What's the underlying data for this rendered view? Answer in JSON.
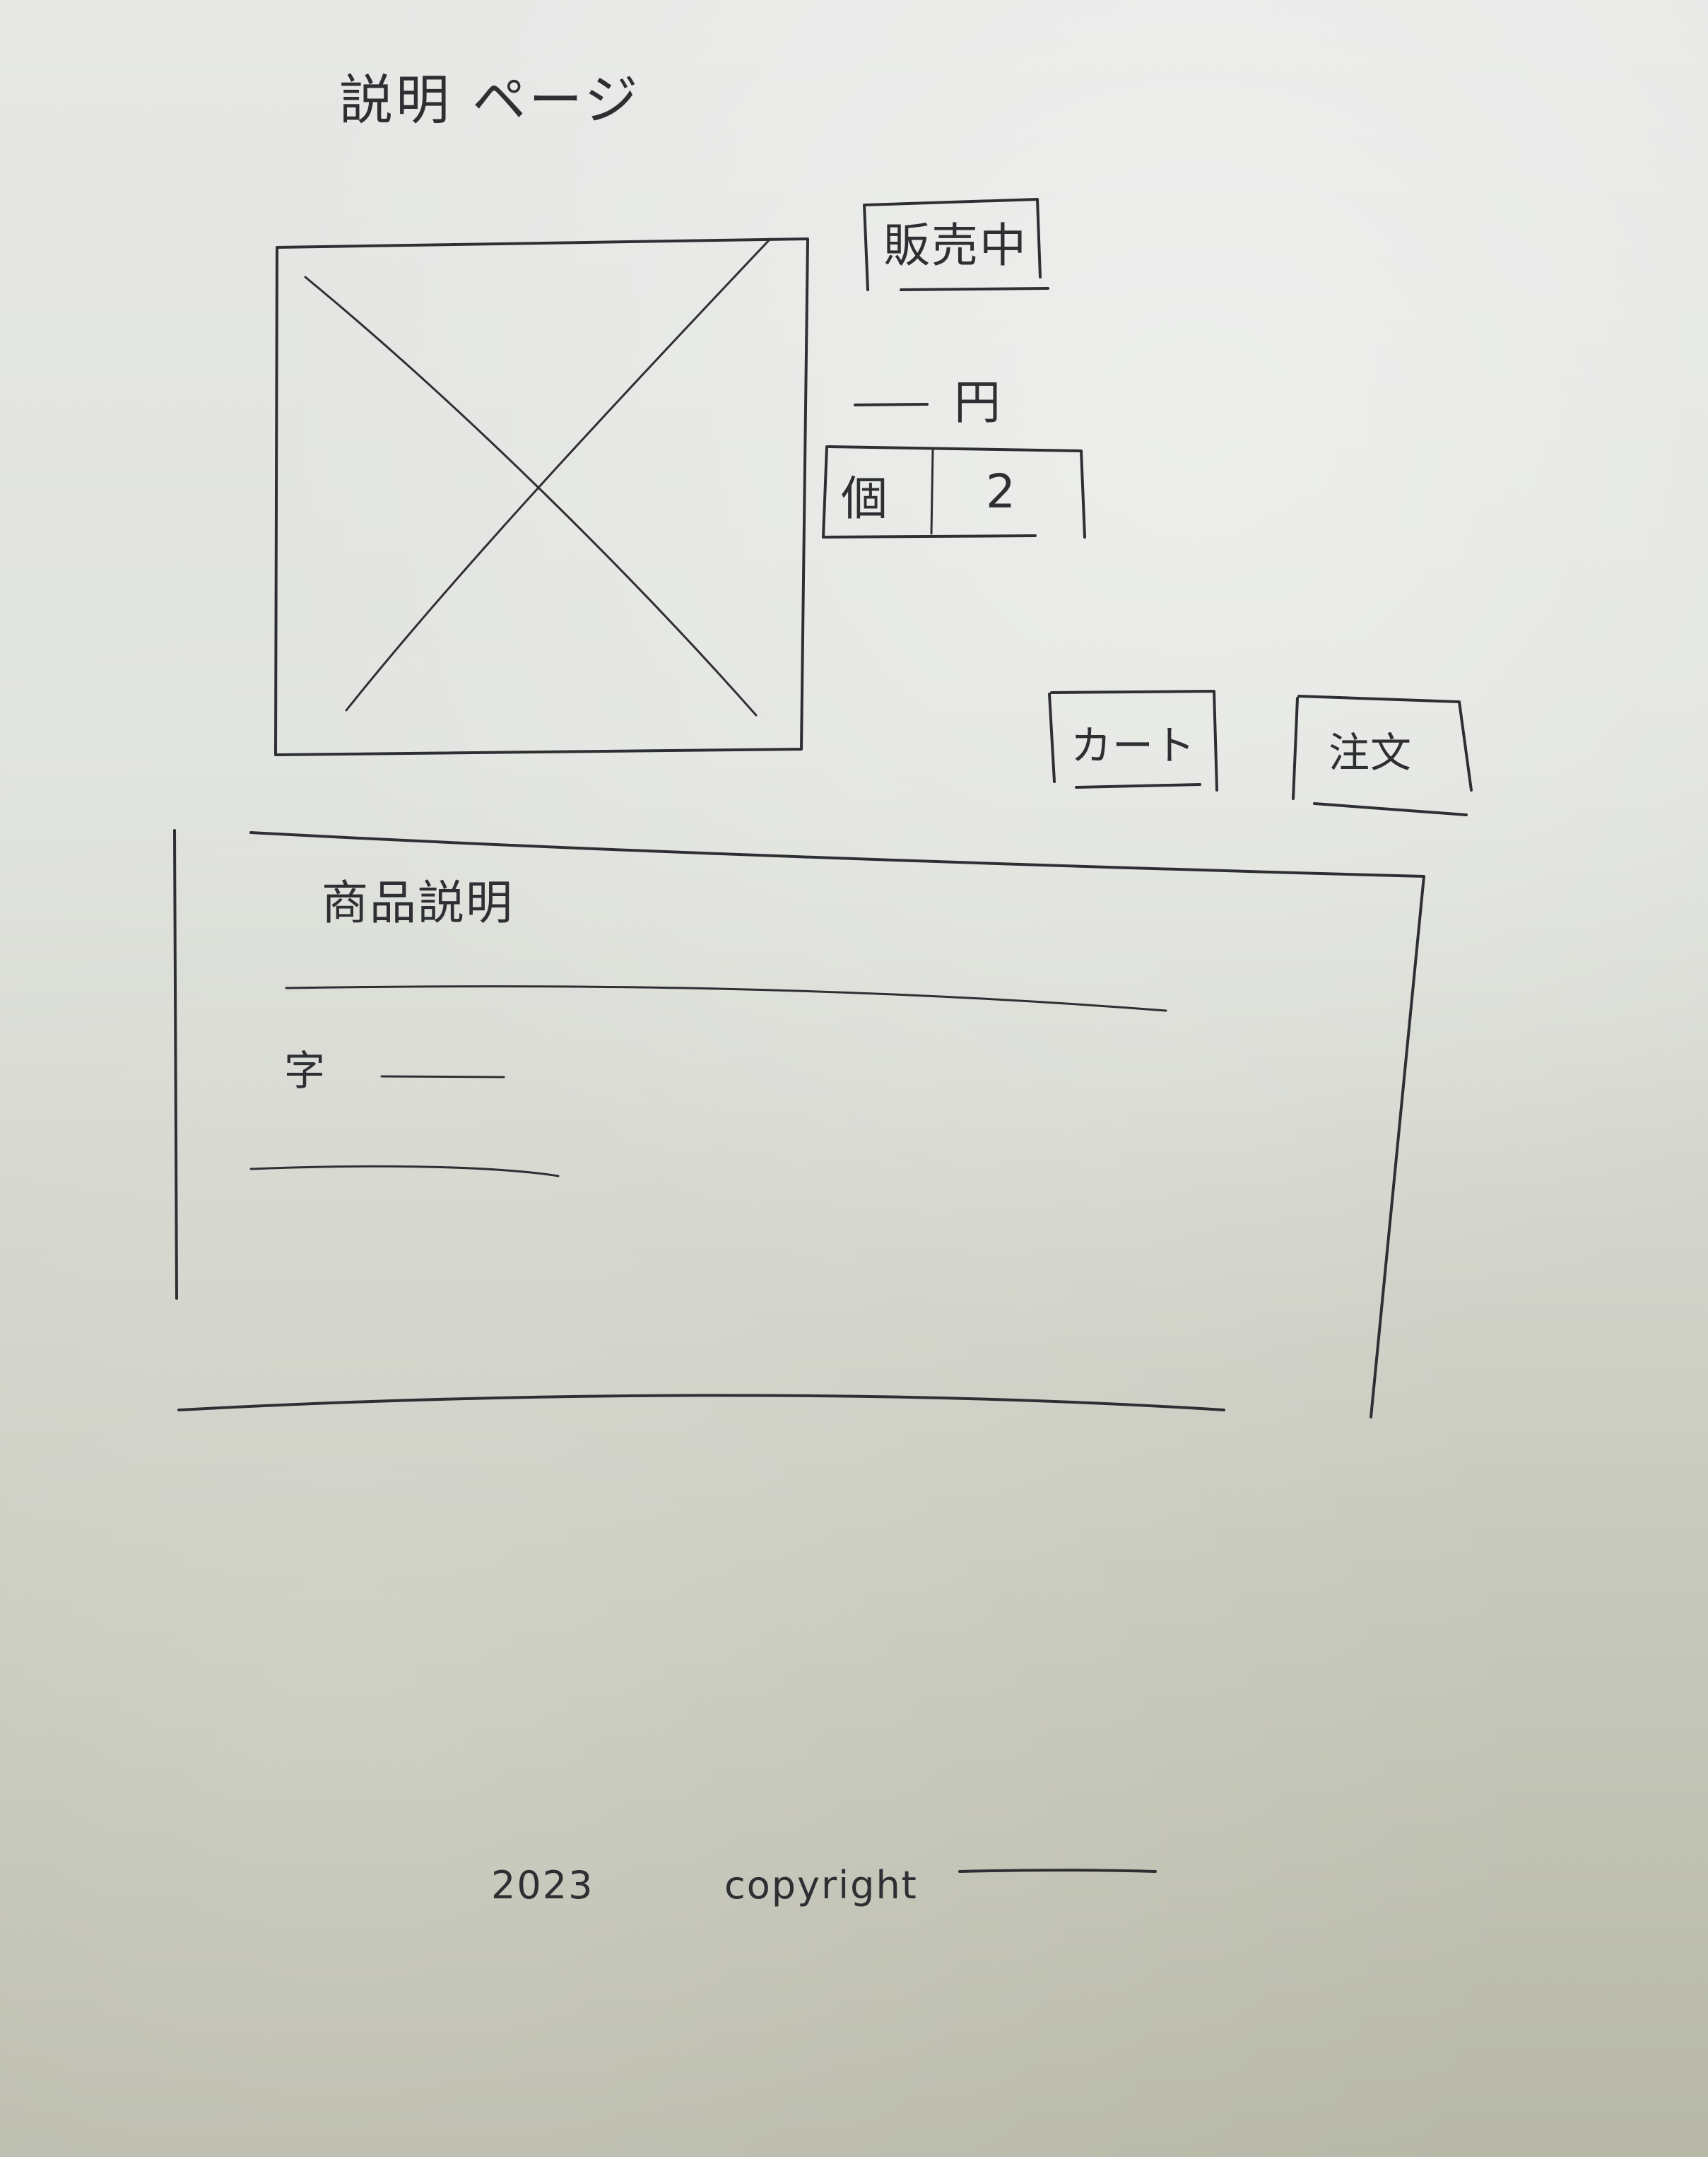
{
  "page": {
    "title": "説明 ページ"
  },
  "product": {
    "image_label": "",
    "badge": "販売中",
    "price_text": "円",
    "quantity_label": "個",
    "quantity_value": "2"
  },
  "actions": {
    "cart_label": "カート",
    "order_label": "注文"
  },
  "description": {
    "title": "商品説明",
    "line_label": "字"
  },
  "footer": {
    "year": "2023",
    "copyright": "copyright"
  }
}
